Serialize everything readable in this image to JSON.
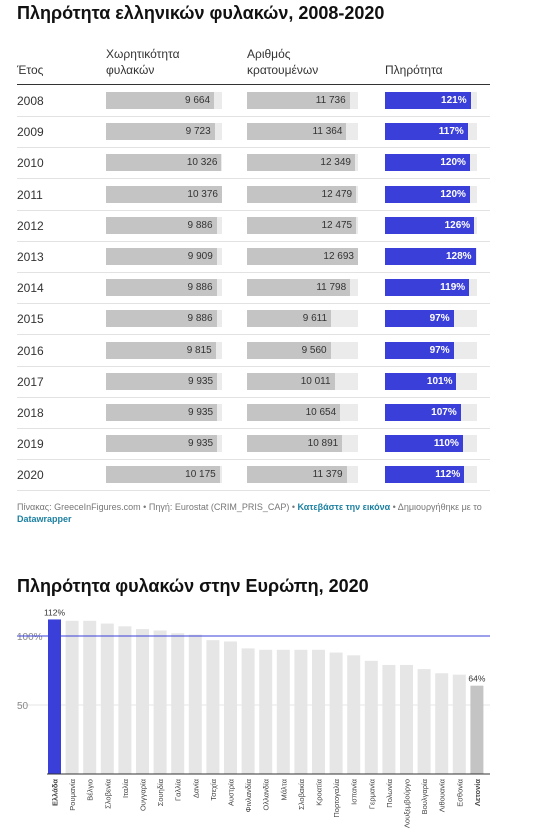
{
  "table": {
    "title": "Πληρότητα ελληνικών φυλακών, 2008-2020",
    "columns": [
      "Έτος",
      "Χωρητικότητα φυλακών",
      "Αριθμός κρατουμένων",
      "Πληρότητα"
    ],
    "rows": [
      {
        "year": "2008",
        "capacity": 9664,
        "capacity_label": "9 664",
        "inmates": 11736,
        "inmates_label": "11 736",
        "occupancy": 121,
        "occupancy_label": "121%"
      },
      {
        "year": "2009",
        "capacity": 9723,
        "capacity_label": "9 723",
        "inmates": 11364,
        "inmates_label": "11 364",
        "occupancy": 117,
        "occupancy_label": "117%"
      },
      {
        "year": "2010",
        "capacity": 10326,
        "capacity_label": "10 326",
        "inmates": 12349,
        "inmates_label": "12 349",
        "occupancy": 120,
        "occupancy_label": "120%"
      },
      {
        "year": "2011",
        "capacity": 10376,
        "capacity_label": "10 376",
        "inmates": 12479,
        "inmates_label": "12 479",
        "occupancy": 120,
        "occupancy_label": "120%"
      },
      {
        "year": "2012",
        "capacity": 9886,
        "capacity_label": "9 886",
        "inmates": 12475,
        "inmates_label": "12 475",
        "occupancy": 126,
        "occupancy_label": "126%"
      },
      {
        "year": "2013",
        "capacity": 9909,
        "capacity_label": "9 909",
        "inmates": 12693,
        "inmates_label": "12 693",
        "occupancy": 128,
        "occupancy_label": "128%"
      },
      {
        "year": "2014",
        "capacity": 9886,
        "capacity_label": "9 886",
        "inmates": 11798,
        "inmates_label": "11 798",
        "occupancy": 119,
        "occupancy_label": "119%"
      },
      {
        "year": "2015",
        "capacity": 9886,
        "capacity_label": "9 886",
        "inmates": 9611,
        "inmates_label": "9 611",
        "occupancy": 97,
        "occupancy_label": "97%"
      },
      {
        "year": "2016",
        "capacity": 9815,
        "capacity_label": "9 815",
        "inmates": 9560,
        "inmates_label": "9 560",
        "occupancy": 97,
        "occupancy_label": "97%"
      },
      {
        "year": "2017",
        "capacity": 9935,
        "capacity_label": "9 935",
        "inmates": 10011,
        "inmates_label": "10 011",
        "occupancy": 101,
        "occupancy_label": "101%"
      },
      {
        "year": "2018",
        "capacity": 9935,
        "capacity_label": "9 935",
        "inmates": 10654,
        "inmates_label": "10 654",
        "occupancy": 107,
        "occupancy_label": "107%"
      },
      {
        "year": "2019",
        "capacity": 9935,
        "capacity_label": "9 935",
        "inmates": 10891,
        "inmates_label": "10 891",
        "occupancy": 110,
        "occupancy_label": "110%"
      },
      {
        "year": "2020",
        "capacity": 10175,
        "capacity_label": "10 175",
        "inmates": 11379,
        "inmates_label": "11 379",
        "occupancy": 112,
        "occupancy_label": "112%"
      }
    ],
    "footer": {
      "source": "Πίνακας: GreeceInFigures.com • Πηγή: Eurostat (CRIM_PRIS_CAP) • ",
      "download": "Κατεβάστε την εικόνα",
      "created": " • Δημιουργήθηκε με το ",
      "tool": "Datawrapper"
    }
  },
  "colors": {
    "highlight": "#3a3fd9",
    "bar_grey": "#c4c4c4",
    "bar_light": "#e6e6e6",
    "track": "#ebebeb",
    "reference_line": "#3a3fd9"
  },
  "chart_data": [
    {
      "type": "table",
      "title": "Πληρότητα ελληνικών φυλακών, 2008-2020",
      "columns": [
        "Έτος",
        "Χωρητικότητα φυλακών",
        "Αριθμός κρατουμένων",
        "Πληρότητα"
      ],
      "categories": [
        "2008",
        "2009",
        "2010",
        "2011",
        "2012",
        "2013",
        "2014",
        "2015",
        "2016",
        "2017",
        "2018",
        "2019",
        "2020"
      ],
      "series": [
        {
          "name": "Χωρητικότητα φυλακών",
          "values": [
            9664,
            9723,
            10326,
            10376,
            9886,
            9909,
            9886,
            9886,
            9815,
            9935,
            9935,
            9935,
            10175
          ]
        },
        {
          "name": "Αριθμός κρατουμένων",
          "values": [
            11736,
            11364,
            12349,
            12479,
            12475,
            12693,
            11798,
            9611,
            9560,
            10011,
            10654,
            10891,
            11379
          ]
        },
        {
          "name": "Πληρότητα",
          "values": [
            121,
            117,
            120,
            120,
            126,
            128,
            119,
            97,
            97,
            101,
            107,
            110,
            112
          ]
        }
      ]
    },
    {
      "type": "bar",
      "title": "Πληρότητα φυλακών στην Ευρώπη, 2020",
      "categories": [
        "Ελλάδα",
        "Ρουμανία",
        "Βέλγιο",
        "Σλοβενία",
        "Ιταλία",
        "Ουγγαρία",
        "Σουηδία",
        "Γαλλία",
        "Δανία",
        "Τσεχία",
        "Αυστρία",
        "Φινλανδία",
        "Ολλανδία",
        "Μάλτα",
        "Σλοβακία",
        "Κροατία",
        "Πορτογαλία",
        "Ισπανία",
        "Γερμανία",
        "Πολωνία",
        "Λουξεμβούργο",
        "Βουλγαρία",
        "Λιθουανία",
        "Εσθονία",
        "Λετονία"
      ],
      "values": [
        112,
        111,
        111,
        109,
        107,
        105,
        104,
        102,
        101,
        97,
        96,
        91,
        90,
        90,
        90,
        90,
        88,
        86,
        82,
        79,
        79,
        76,
        73,
        72,
        64
      ],
      "highlight": "Ελλάδα",
      "muted": "Λετονία",
      "yticks": [
        50,
        100
      ],
      "ytick_labels": [
        "50",
        "100%"
      ],
      "ylim": [
        0,
        112
      ],
      "reference_line": 100,
      "data_labels": {
        "Ελλάδα": "112%",
        "Λετονία": "64%"
      }
    }
  ]
}
